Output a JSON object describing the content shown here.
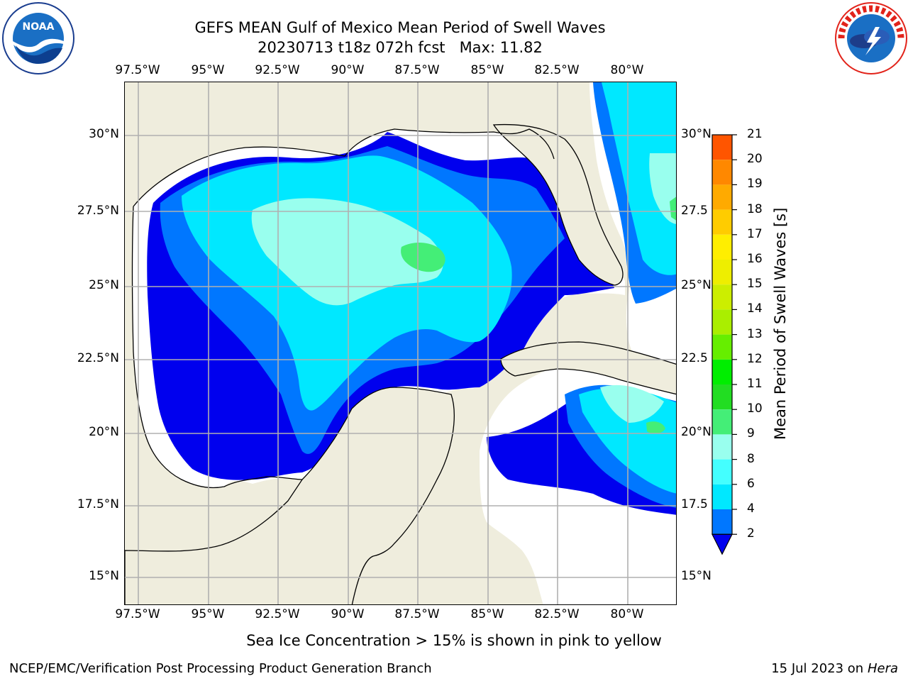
{
  "header": {
    "title_line1": "GEFS MEAN Gulf of Mexico Mean Period of Swell Waves",
    "title_line2": "20230713 t18z 072h fcst   Max: 11.82"
  },
  "logos": {
    "left": "NOAA",
    "left_ring_text": "NATIONAL OCEANIC AND ATMOSPHERIC ADMINISTRATION · U.S. DEPARTMENT OF COMMERCE",
    "right_ring_text": "NATIONAL WEATHER SERVICE"
  },
  "axes": {
    "lon_labels": [
      "97.5°W",
      "95°W",
      "92.5°W",
      "90°W",
      "87.5°W",
      "85°W",
      "82.5°W",
      "80°W"
    ],
    "lat_labels_left": [
      "30°N",
      "27.5°N",
      "25°N",
      "22.5°N",
      "20°N",
      "17.5°N",
      "15°N"
    ],
    "lat_labels_right": [
      "30°N",
      "27.5",
      "25°N",
      "22.5",
      "20°N",
      "17.5",
      "15°N"
    ]
  },
  "colorbar": {
    "label": "Mean Period of Swell Waves [s]",
    "ticks": [
      "2",
      "4",
      "6",
      "8",
      "9",
      "10",
      "11",
      "12",
      "13",
      "14",
      "15",
      "16",
      "17",
      "18",
      "19",
      "20",
      "21"
    ],
    "colors": [
      "#0000ee",
      "#0077ff",
      "#00e8ff",
      "#44ffff",
      "#99ffee",
      "#44ee77",
      "#22dd22",
      "#00ee00",
      "#66ee00",
      "#aaee00",
      "#ccee00",
      "#eeee00",
      "#ffee00",
      "#ffcc00",
      "#ffaa00",
      "#ff8800",
      "#ff5500",
      "#ff2200",
      "#ff0000"
    ]
  },
  "notes": {
    "ice": "Sea Ice Concentration > 15% is shown in pink to yellow"
  },
  "footer": {
    "left": "NCEP/EMC/Verification Post Processing Product Generation Branch",
    "right_prefix": "15 Jul 2023 on ",
    "right_host": "Hera"
  }
}
